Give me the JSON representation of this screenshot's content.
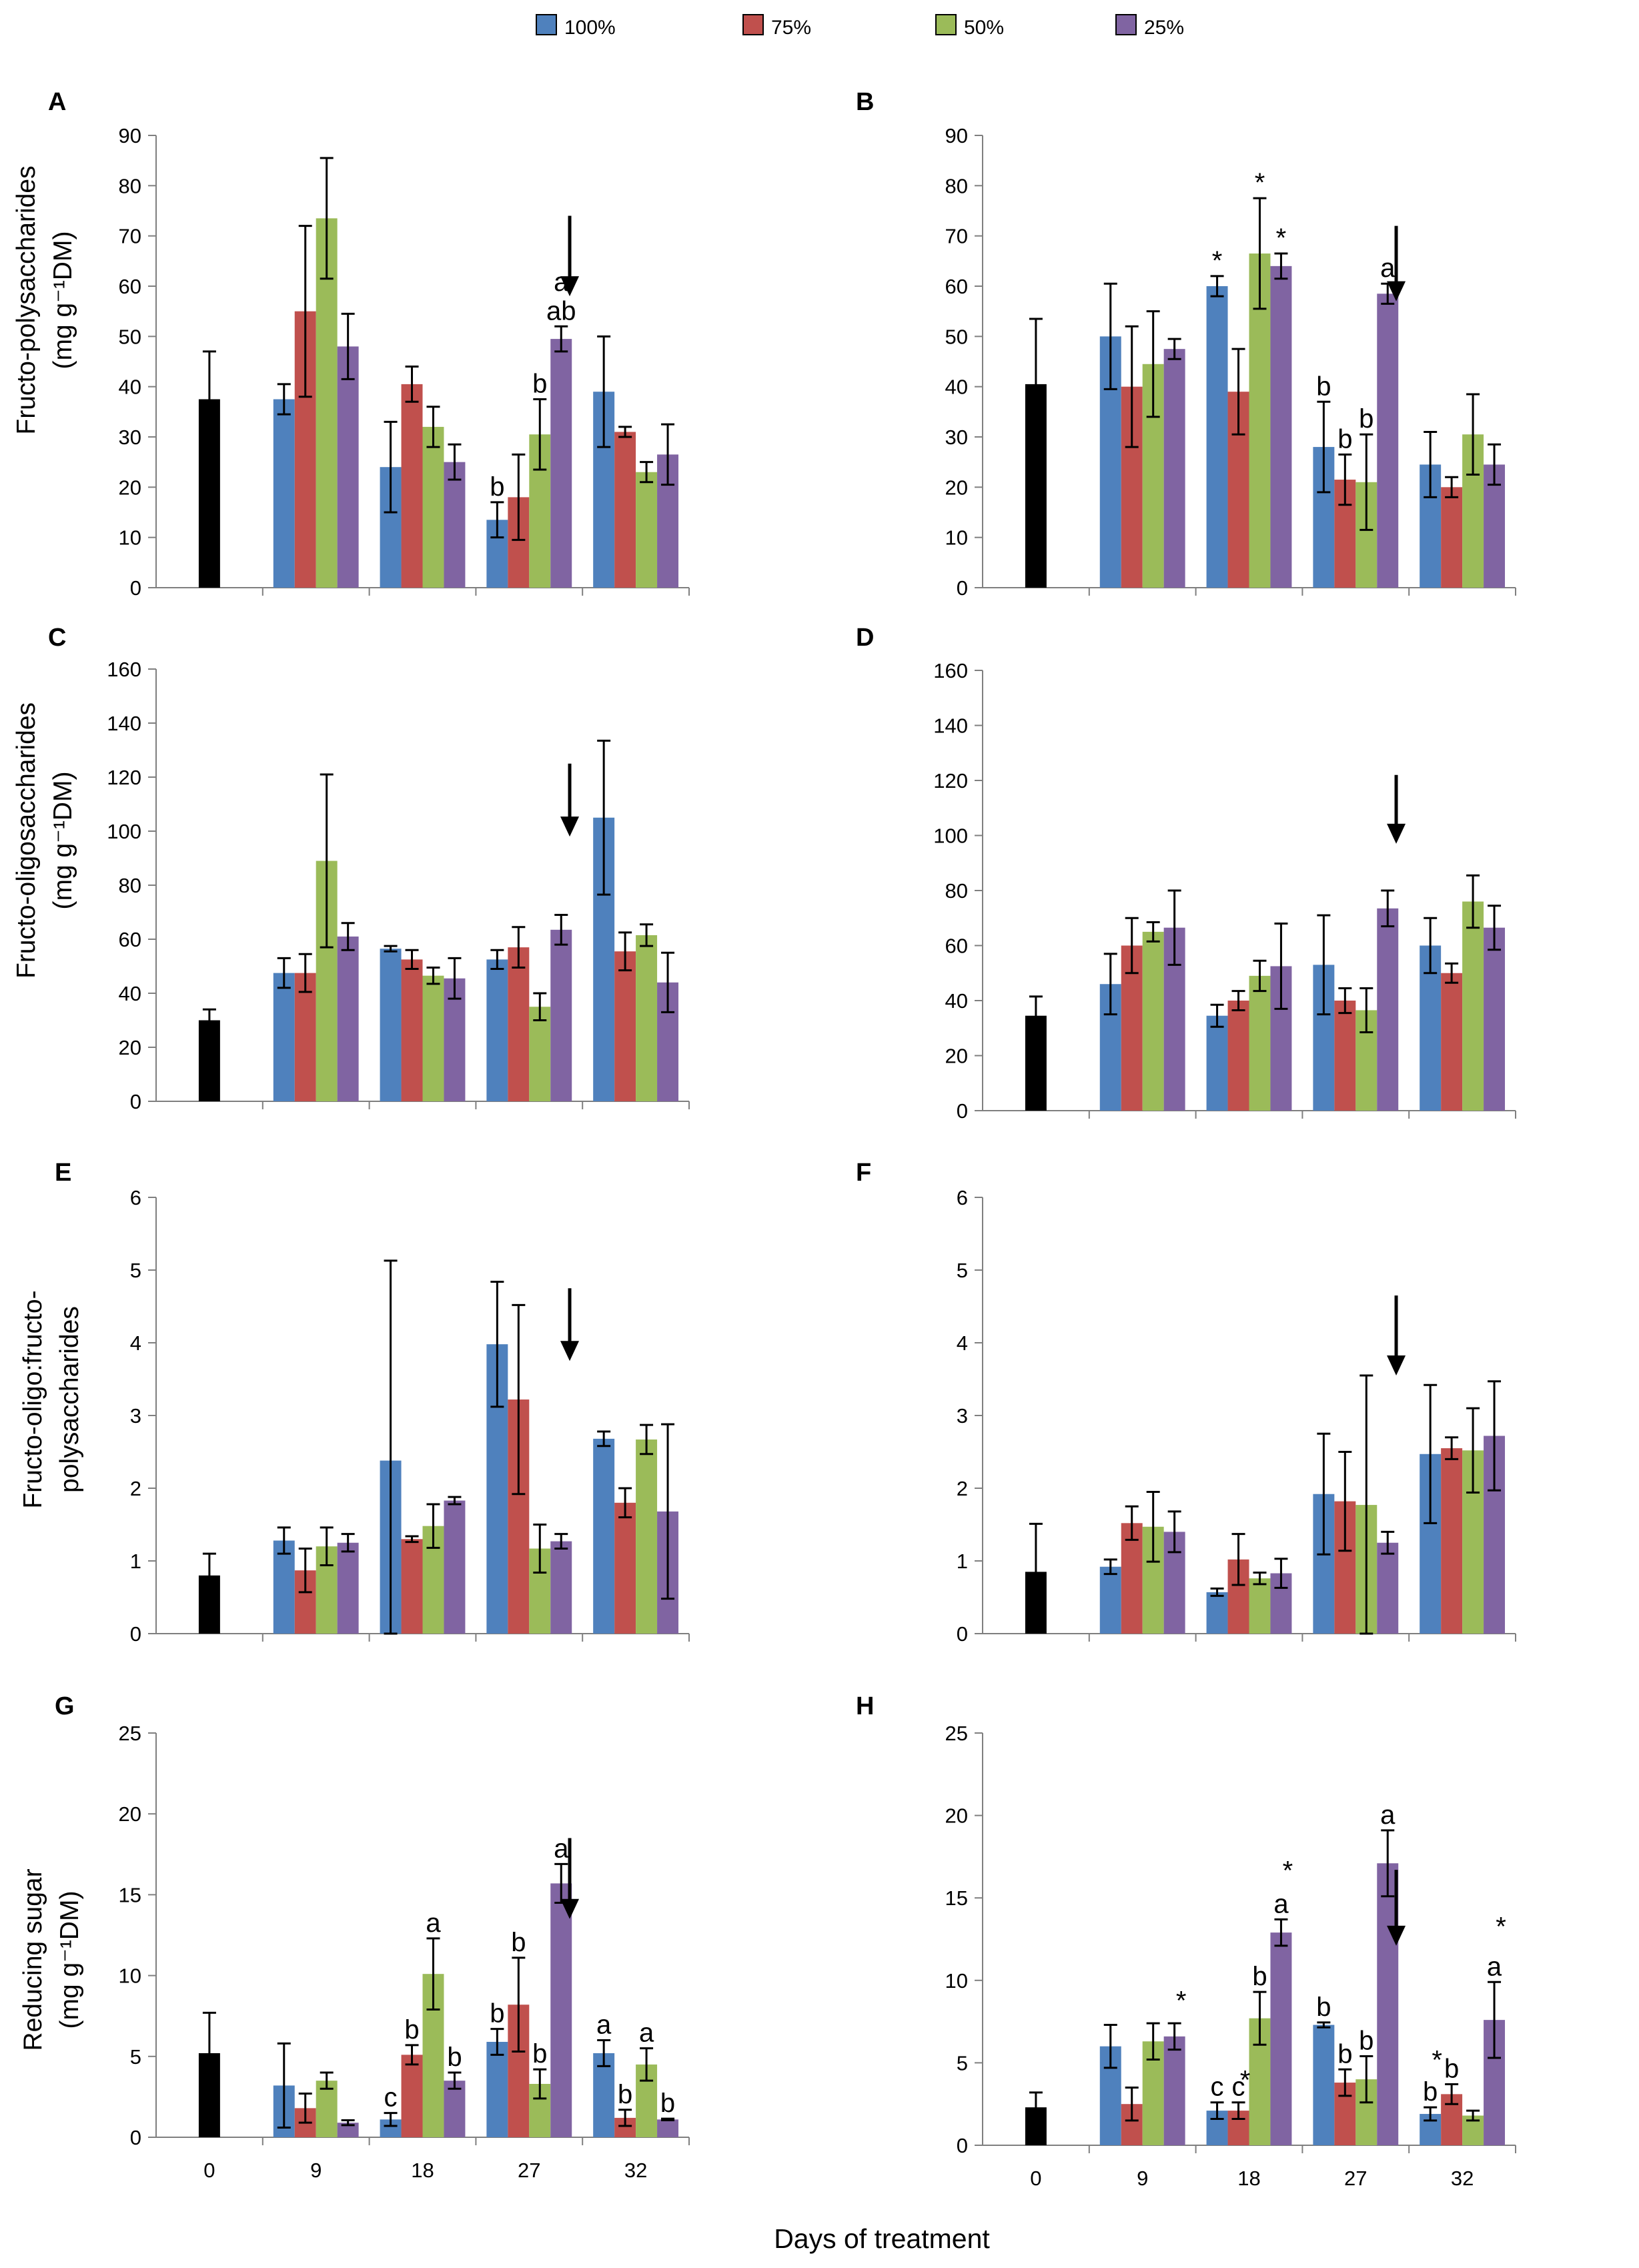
{
  "legend": {
    "items": [
      {
        "label": "100%",
        "color": "#4F81BD"
      },
      {
        "label": "75%",
        "color": "#C0504D"
      },
      {
        "label": "50%",
        "color": "#9BBB59"
      },
      {
        "label": "25%",
        "color": "#8064A2"
      }
    ]
  },
  "figure": {
    "x_axis_label": "Days of treatment",
    "row_ylabels": [
      [
        "Fructo-polysaccharides",
        "(mg g⁻¹DM)"
      ],
      [
        "Fructo-oligosaccharides",
        "(mg g⁻¹DM)"
      ],
      [
        "Fructo-oligo:fructo-",
        "polysaccharides"
      ],
      [
        "Reducing sugar",
        "(mg g⁻¹DM)"
      ]
    ]
  },
  "chart_data": [
    {
      "panel": "A",
      "type": "bar",
      "ylim": [
        0,
        90
      ],
      "yticks": [
        0,
        10,
        20,
        30,
        40,
        50,
        60,
        70,
        80,
        90
      ],
      "control": {
        "category": "0",
        "value": 37.5,
        "error": 9.5,
        "color": "#000000"
      },
      "categories": [
        "9",
        "18",
        "27",
        "32"
      ],
      "show_xticks": false,
      "series": [
        {
          "name": "100%",
          "values": [
            37.5,
            24,
            13.5,
            39
          ],
          "errors": [
            3,
            9,
            3.5,
            11
          ],
          "annotations": [
            "",
            "",
            "b",
            ""
          ]
        },
        {
          "name": "75%",
          "values": [
            55,
            40.5,
            18,
            31
          ],
          "errors": [
            17,
            3.5,
            8.5,
            1
          ],
          "annotations": [
            "",
            "",
            "",
            ""
          ]
        },
        {
          "name": "50%",
          "values": [
            73.5,
            32,
            30.5,
            23
          ],
          "errors": [
            12,
            4,
            7,
            2
          ],
          "annotations": [
            "",
            "",
            "b",
            ""
          ]
        },
        {
          "name": "25%",
          "values": [
            48,
            25,
            49.5,
            26.5
          ],
          "errors": [
            6.5,
            3.5,
            2.5,
            6
          ],
          "annotations": [
            "",
            "",
            "ab",
            ""
          ]
        }
      ],
      "extra_labels": [
        {
          "text": "a",
          "category": "27",
          "series": 3,
          "level": 58
        }
      ],
      "arrow": {
        "category": "27",
        "y_top": 74,
        "y_bottom": 58
      }
    },
    {
      "panel": "B",
      "type": "bar",
      "ylim": [
        0,
        90
      ],
      "yticks": [
        0,
        10,
        20,
        30,
        40,
        50,
        60,
        70,
        80,
        90
      ],
      "control": {
        "category": "0",
        "value": 40.5,
        "error": 13,
        "color": "#000000"
      },
      "categories": [
        "9",
        "18",
        "27",
        "32"
      ],
      "show_xticks": false,
      "series": [
        {
          "name": "100%",
          "values": [
            50,
            60,
            28,
            24.5
          ],
          "errors": [
            10.5,
            2,
            9,
            6.5
          ],
          "annotations": [
            "",
            "*",
            "b",
            ""
          ]
        },
        {
          "name": "75%",
          "values": [
            40,
            39,
            21.5,
            20
          ],
          "errors": [
            12,
            8.5,
            5,
            2
          ],
          "annotations": [
            "",
            "",
            "b",
            ""
          ]
        },
        {
          "name": "50%",
          "values": [
            44.5,
            66.5,
            21,
            30.5
          ],
          "errors": [
            10.5,
            11,
            9.5,
            8
          ],
          "annotations": [
            "",
            "*",
            "b",
            ""
          ]
        },
        {
          "name": "25%",
          "values": [
            47.5,
            64,
            58.5,
            24.5
          ],
          "errors": [
            2,
            2.5,
            2,
            4
          ],
          "annotations": [
            "",
            "*",
            "a",
            ""
          ]
        }
      ],
      "extra_labels": [],
      "arrow": {
        "category": "27",
        "y_top": 72,
        "y_bottom": 57
      }
    },
    {
      "panel": "C",
      "type": "bar",
      "ylim": [
        0,
        160
      ],
      "yticks": [
        0,
        20,
        40,
        60,
        80,
        100,
        120,
        140,
        160
      ],
      "control": {
        "category": "0",
        "value": 30,
        "error": 4,
        "color": "#000000"
      },
      "categories": [
        "9",
        "18",
        "27",
        "32"
      ],
      "show_xticks": false,
      "series": [
        {
          "name": "100%",
          "values": [
            47.5,
            56.5,
            52.5,
            105
          ],
          "errors": [
            5.5,
            1,
            3.5,
            28.5
          ],
          "annotations": [
            "",
            "",
            "",
            ""
          ]
        },
        {
          "name": "75%",
          "values": [
            47.5,
            52.5,
            57,
            55.5
          ],
          "errors": [
            7,
            3.5,
            7.5,
            7
          ],
          "annotations": [
            "",
            "",
            "",
            ""
          ]
        },
        {
          "name": "50%",
          "values": [
            89,
            46.5,
            35,
            61.5
          ],
          "errors": [
            32,
            3,
            5,
            4
          ],
          "annotations": [
            "",
            "",
            "",
            ""
          ]
        },
        {
          "name": "25%",
          "values": [
            61,
            45.5,
            63.5,
            44
          ],
          "errors": [
            5,
            7.5,
            5.5,
            11
          ],
          "annotations": [
            "",
            "",
            "",
            ""
          ]
        }
      ],
      "extra_labels": [],
      "arrow": {
        "category": "27",
        "y_top": 125,
        "y_bottom": 98
      }
    },
    {
      "panel": "D",
      "type": "bar",
      "ylim": [
        0,
        160
      ],
      "yticks": [
        0,
        20,
        40,
        60,
        80,
        100,
        120,
        140,
        160
      ],
      "control": {
        "category": "0",
        "value": 34.5,
        "error": 7,
        "color": "#000000"
      },
      "categories": [
        "9",
        "18",
        "27",
        "32"
      ],
      "show_xticks": false,
      "series": [
        {
          "name": "100%",
          "values": [
            46,
            34.5,
            53,
            60
          ],
          "errors": [
            11,
            4,
            18,
            10
          ],
          "annotations": [
            "",
            "",
            "",
            ""
          ]
        },
        {
          "name": "75%",
          "values": [
            60,
            40,
            40,
            50
          ],
          "errors": [
            10,
            3.5,
            4.5,
            3.5
          ],
          "annotations": [
            "",
            "",
            "",
            ""
          ]
        },
        {
          "name": "50%",
          "values": [
            65,
            49,
            36.5,
            76
          ],
          "errors": [
            3.5,
            5.5,
            8,
            9.5
          ],
          "annotations": [
            "",
            "",
            "",
            ""
          ]
        },
        {
          "name": "25%",
          "values": [
            66.5,
            52.5,
            73.5,
            66.5
          ],
          "errors": [
            13.5,
            15.5,
            6.5,
            8
          ],
          "annotations": [
            "",
            "",
            "",
            ""
          ]
        }
      ],
      "extra_labels": [],
      "arrow": {
        "category": "27",
        "y_top": 122,
        "y_bottom": 97
      }
    },
    {
      "panel": "E",
      "type": "bar",
      "ylim": [
        0,
        6
      ],
      "yticks": [
        0,
        1,
        2,
        3,
        4,
        5,
        6
      ],
      "control": {
        "category": "0",
        "value": 0.8,
        "error": 0.3,
        "color": "#000000"
      },
      "categories": [
        "9",
        "18",
        "27",
        "32"
      ],
      "show_xticks": false,
      "series": [
        {
          "name": "100%",
          "values": [
            1.28,
            2.38,
            3.98,
            2.68
          ],
          "errors": [
            0.18,
            2.75,
            0.86,
            0.1
          ],
          "annotations": [
            "",
            "",
            "",
            ""
          ]
        },
        {
          "name": "75%",
          "values": [
            0.87,
            1.3,
            3.22,
            1.8
          ],
          "errors": [
            0.3,
            0.04,
            1.3,
            0.2
          ],
          "annotations": [
            "",
            "",
            "",
            ""
          ]
        },
        {
          "name": "50%",
          "values": [
            1.2,
            1.48,
            1.17,
            2.67
          ],
          "errors": [
            0.26,
            0.3,
            0.33,
            0.2
          ],
          "annotations": [
            "",
            "",
            "",
            ""
          ]
        },
        {
          "name": "25%",
          "values": [
            1.25,
            1.83,
            1.27,
            1.68
          ],
          "errors": [
            0.12,
            0.05,
            0.1,
            1.2
          ],
          "annotations": [
            "",
            "",
            "",
            ""
          ]
        }
      ],
      "extra_labels": [],
      "arrow": {
        "category": "27",
        "y_top": 4.75,
        "y_bottom": 3.75
      }
    },
    {
      "panel": "F",
      "type": "bar",
      "ylim": [
        0,
        6
      ],
      "yticks": [
        0,
        1,
        2,
        3,
        4,
        5,
        6
      ],
      "control": {
        "category": "0",
        "value": 0.85,
        "error": 0.66,
        "color": "#000000"
      },
      "categories": [
        "9",
        "18",
        "27",
        "32"
      ],
      "show_xticks": false,
      "series": [
        {
          "name": "100%",
          "values": [
            0.92,
            0.57,
            1.92,
            2.47
          ],
          "errors": [
            0.1,
            0.05,
            0.83,
            0.95
          ],
          "annotations": [
            "",
            "",
            "",
            ""
          ]
        },
        {
          "name": "75%",
          "values": [
            1.52,
            1.02,
            1.82,
            2.55
          ],
          "errors": [
            0.23,
            0.35,
            0.68,
            0.15
          ],
          "annotations": [
            "",
            "",
            "",
            ""
          ]
        },
        {
          "name": "50%",
          "values": [
            1.47,
            0.76,
            1.77,
            2.52
          ],
          "errors": [
            0.48,
            0.08,
            1.78,
            0.58
          ],
          "annotations": [
            "",
            "",
            "",
            ""
          ]
        },
        {
          "name": "25%",
          "values": [
            1.4,
            0.83,
            1.25,
            2.72
          ],
          "errors": [
            0.28,
            0.2,
            0.15,
            0.75
          ],
          "annotations": [
            "",
            "",
            "",
            ""
          ]
        }
      ],
      "extra_labels": [],
      "arrow": {
        "category": "27",
        "y_top": 4.65,
        "y_bottom": 3.55
      }
    },
    {
      "panel": "G",
      "type": "bar",
      "ylim": [
        0,
        25
      ],
      "yticks": [
        0,
        5,
        10,
        15,
        20,
        25
      ],
      "control": {
        "category": "0",
        "value": 5.2,
        "error": 2.5,
        "color": "#000000"
      },
      "categories": [
        "9",
        "18",
        "27",
        "32"
      ],
      "show_xticks": true,
      "series": [
        {
          "name": "100%",
          "values": [
            3.2,
            1.1,
            5.9,
            5.2
          ],
          "errors": [
            2.6,
            0.4,
            0.8,
            0.8
          ],
          "annotations": [
            "",
            "c",
            "b",
            "a"
          ]
        },
        {
          "name": "75%",
          "values": [
            1.8,
            5.1,
            8.2,
            1.2
          ],
          "errors": [
            0.9,
            0.6,
            2.9,
            0.5
          ],
          "annotations": [
            "",
            "b",
            "b",
            "b"
          ]
        },
        {
          "name": "50%",
          "values": [
            3.5,
            10.1,
            3.3,
            4.5
          ],
          "errors": [
            0.5,
            2.2,
            0.9,
            1
          ],
          "annotations": [
            "",
            "a",
            "b",
            "a"
          ]
        },
        {
          "name": "25%",
          "values": [
            0.9,
            3.5,
            15.7,
            1.1
          ],
          "errors": [
            0.15,
            0.5,
            1.2,
            0.05
          ],
          "annotations": [
            "",
            "b",
            "a",
            "b"
          ]
        }
      ],
      "extra_labels": [],
      "arrow": {
        "category": "27",
        "y_top": 18.5,
        "y_bottom": 13.5
      }
    },
    {
      "panel": "H",
      "type": "bar",
      "ylim": [
        0,
        25
      ],
      "yticks": [
        0,
        5,
        10,
        15,
        20,
        25
      ],
      "control": {
        "category": "0",
        "value": 2.3,
        "error": 0.9,
        "color": "#000000"
      },
      "categories": [
        "9",
        "18",
        "27",
        "32"
      ],
      "show_xticks": true,
      "series": [
        {
          "name": "100%",
          "values": [
            6,
            2.1,
            7.3,
            1.9
          ],
          "errors": [
            1.3,
            0.5,
            0.15,
            0.4
          ],
          "annotations": [
            "",
            "c",
            "b",
            "b"
          ]
        },
        {
          "name": "75%",
          "values": [
            2.5,
            2.1,
            3.8,
            3.1
          ],
          "errors": [
            1,
            0.5,
            0.8,
            0.6
          ],
          "annotations": [
            "",
            "c",
            "b",
            "b"
          ]
        },
        {
          "name": "50%",
          "values": [
            6.3,
            7.7,
            4,
            1.8
          ],
          "errors": [
            1.1,
            1.6,
            1.4,
            0.3
          ],
          "annotations": [
            "",
            "b",
            "b",
            ""
          ]
        },
        {
          "name": "25%",
          "values": [
            6.6,
            12.9,
            17.1,
            7.6
          ],
          "errors": [
            0.8,
            0.8,
            2,
            2.3
          ],
          "annotations": [
            "",
            "a",
            "a",
            "a"
          ]
        }
      ],
      "extra_labels": [
        {
          "text": "*",
          "category": "9",
          "series": 3,
          "level": 7.9
        },
        {
          "text": "*",
          "category": "18",
          "series": 1,
          "level": 3.1
        },
        {
          "text": "*",
          "category": "18",
          "series": 3,
          "level": 15.8
        },
        {
          "text": "*",
          "category": "32",
          "series": 0,
          "level": 4.3
        },
        {
          "text": "*",
          "category": "32",
          "series": 3,
          "level": 12.4
        }
      ],
      "arrow": {
        "category": "27",
        "y_top": 16.7,
        "y_bottom": 12.1
      }
    }
  ]
}
